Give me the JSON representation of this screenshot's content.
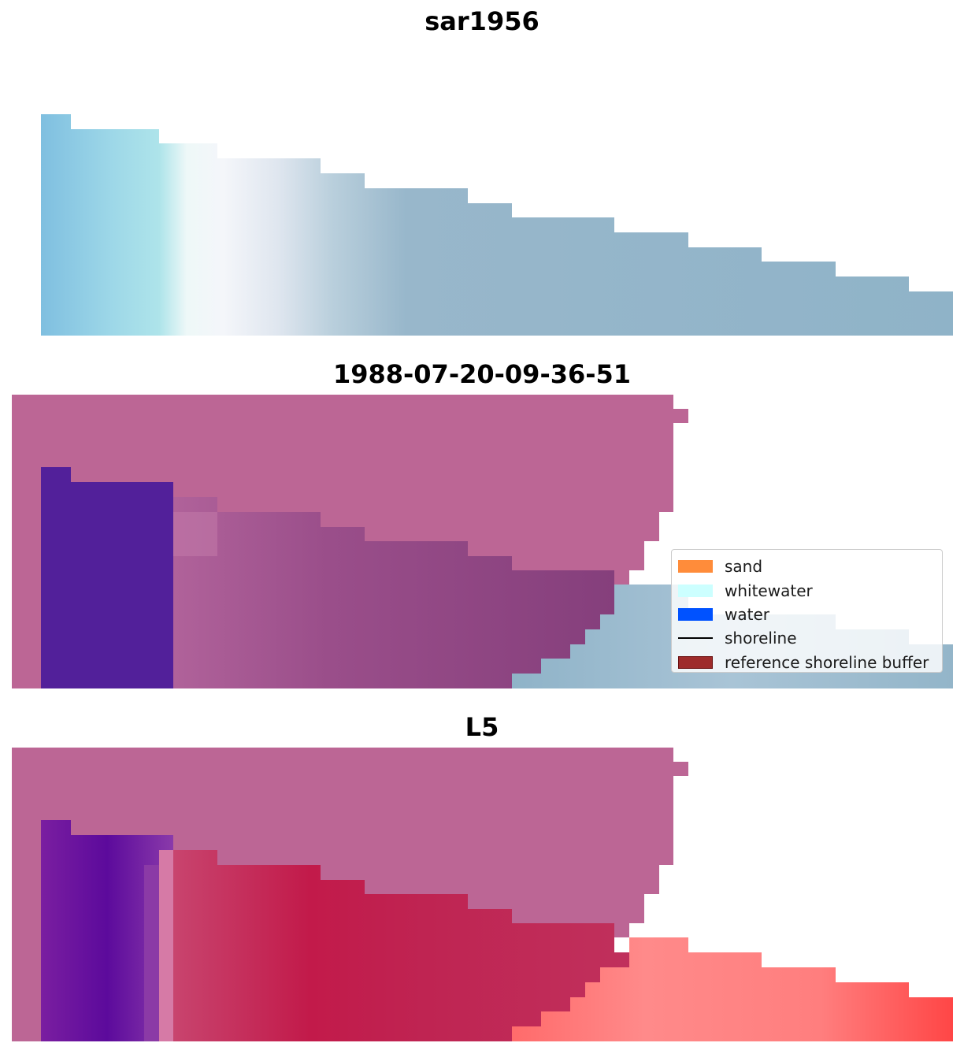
{
  "panels": [
    {
      "title": "sar1956"
    },
    {
      "title": "1988-07-20-09-36-51"
    },
    {
      "title": "L5"
    }
  ],
  "legend": {
    "items": [
      {
        "label": "sand",
        "color": "#ff8c3a",
        "kind": "patch"
      },
      {
        "label": "whitewater",
        "color": "#ccffff",
        "kind": "patch"
      },
      {
        "label": "water",
        "color": "#0052ff",
        "kind": "patch"
      },
      {
        "label": "shoreline",
        "color": "#000000",
        "kind": "line"
      },
      {
        "label": "reference shoreline buffer",
        "color": "#a0282a",
        "kind": "patch"
      }
    ]
  },
  "colors": {
    "buffer_mask": "#bc6695",
    "water_overlay": "#52209a",
    "sar_tint": "#8fb3c8",
    "sand_overlay": "#ff8080",
    "l5_water": "#6a149c",
    "l5_red": "#c4194a"
  }
}
